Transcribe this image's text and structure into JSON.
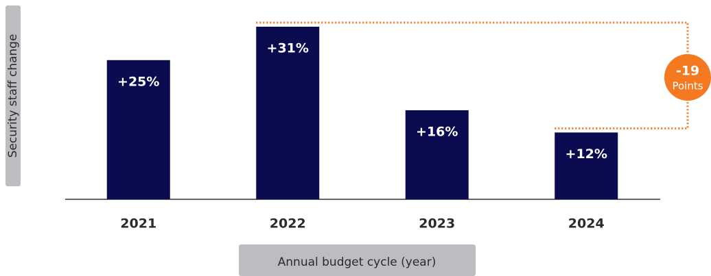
{
  "chart_data": {
    "type": "bar",
    "y_label": "Security staff change",
    "x_label": "Annual budget cycle (year)",
    "categories": [
      "2021",
      "2022",
      "2023",
      "2024"
    ],
    "values": [
      25,
      31,
      16,
      12
    ],
    "value_labels": [
      "+25%",
      "+31%",
      "+16%",
      "+12%"
    ],
    "color": "#0b0b4f",
    "ylim": [
      0,
      31
    ],
    "annotation": {
      "value": "-19",
      "unit": "Points",
      "color": "#f47920"
    }
  }
}
